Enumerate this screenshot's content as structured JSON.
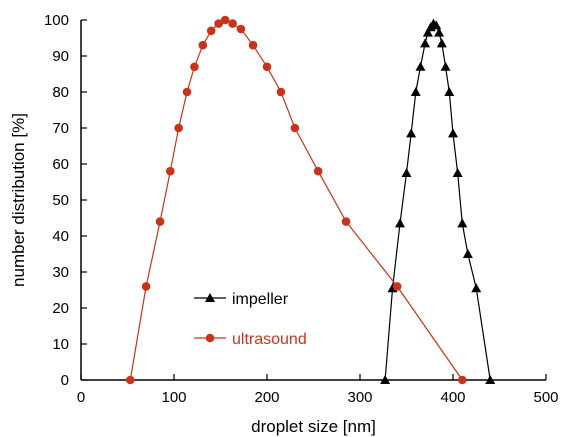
{
  "chart_data": {
    "type": "line",
    "title": "",
    "xlabel": "droplet size [nm]",
    "ylabel": "number distribution [%]",
    "xlim": [
      0,
      500
    ],
    "ylim": [
      0,
      100
    ],
    "xticks": [
      0,
      100,
      200,
      300,
      400,
      500
    ],
    "yticks": [
      0,
      10,
      20,
      30,
      40,
      50,
      60,
      70,
      80,
      90,
      100
    ],
    "grid": false,
    "legend_position": "lower-left-center",
    "series": [
      {
        "name": "impeller",
        "color": "#000000",
        "marker": "triangle",
        "x": [
          327,
          335,
          343,
          350,
          355,
          360,
          365,
          370,
          373,
          376,
          379,
          382,
          385,
          388,
          392,
          396,
          400,
          405,
          410,
          416,
          425,
          440
        ],
        "y": [
          0,
          25.5,
          43.5,
          57.5,
          68.5,
          80,
          87,
          93.5,
          96.5,
          98,
          99,
          98.5,
          96.5,
          93.5,
          87,
          80,
          68.5,
          57.5,
          43.5,
          35,
          25.5,
          0
        ]
      },
      {
        "name": "ultrasound",
        "color": "#c8341b",
        "marker": "circle",
        "x": [
          53,
          70,
          85,
          96,
          105,
          114,
          122,
          131,
          140,
          148,
          155,
          163,
          172,
          185,
          200,
          215,
          230,
          255,
          285,
          340,
          410
        ],
        "y": [
          0,
          26,
          44,
          58,
          70,
          80,
          87,
          93,
          97,
          99,
          100,
          99,
          97.5,
          93,
          87,
          80,
          70,
          58,
          44,
          26,
          0
        ]
      }
    ]
  }
}
